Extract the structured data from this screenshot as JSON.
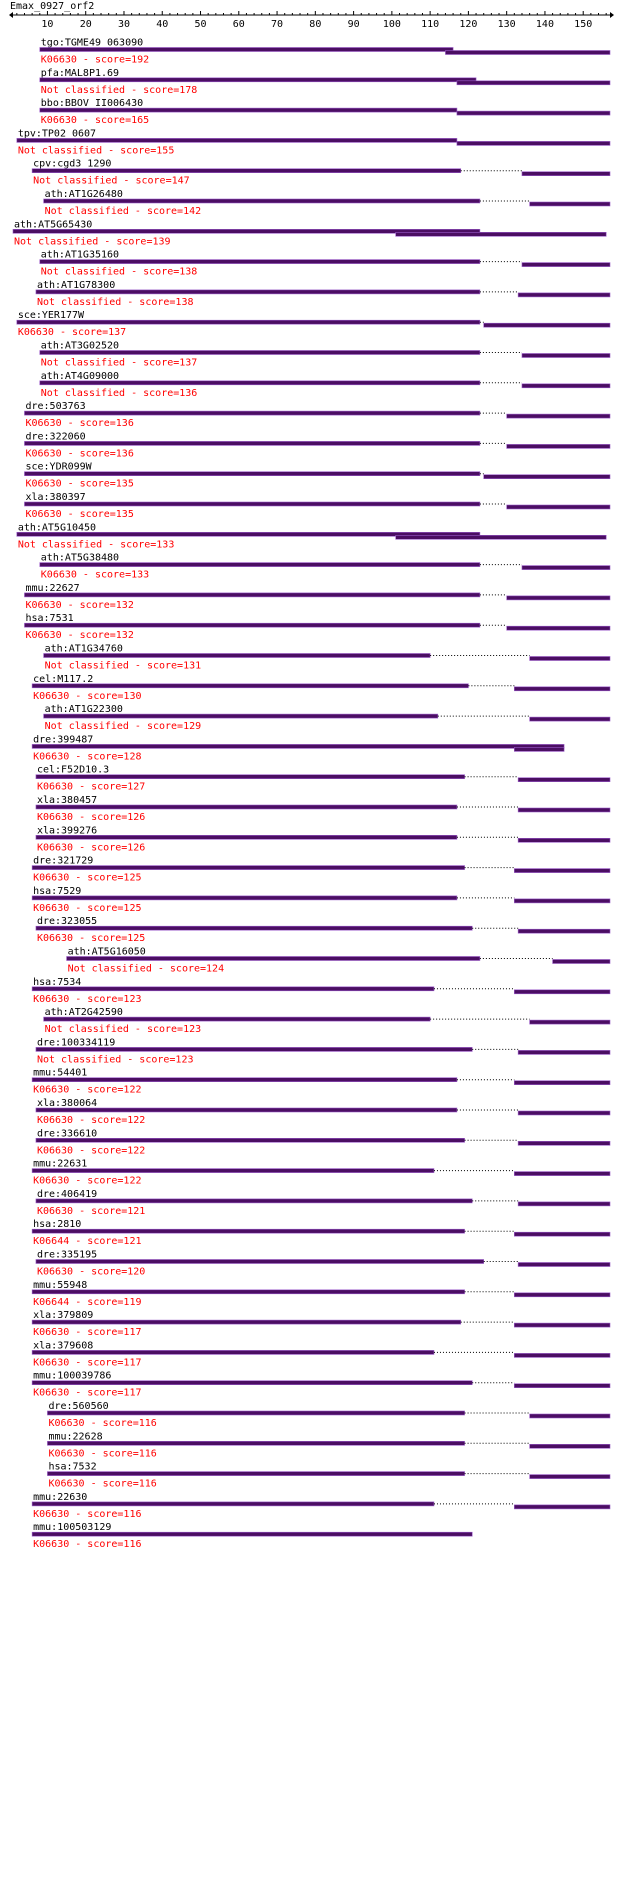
{
  "title": "Emax_0927_orf2",
  "ruler": {
    "range": [
      1,
      157
    ],
    "ticks": [
      10,
      20,
      30,
      40,
      50,
      60,
      70,
      80,
      90,
      100,
      110,
      120,
      130,
      140,
      150
    ]
  },
  "colors": {
    "bar": "#4b0e63",
    "bar_edge": "#9a5ac8",
    "score_text": "#ff0000",
    "text": "#000000"
  },
  "hits": [
    {
      "name": "tgo:TGME49_063090",
      "label": "K06630 - score=192",
      "segments": [
        [
          8,
          116
        ],
        [
          114,
          157
        ]
      ],
      "dotted": []
    },
    {
      "name": "pfa:MAL8P1.69",
      "label": "Not classified - score=178",
      "segments": [
        [
          8,
          122
        ],
        [
          117,
          157
        ]
      ],
      "dotted": []
    },
    {
      "name": "bbo:BBOV_II006430",
      "label": "K06630 - score=165",
      "segments": [
        [
          8,
          117
        ],
        [
          117,
          157
        ]
      ],
      "dotted": []
    },
    {
      "name": "tpv:TP02_0607",
      "label": "Not classified - score=155",
      "segments": [
        [
          2,
          117
        ],
        [
          117,
          157
        ]
      ],
      "dotted": []
    },
    {
      "name": "cpv:cgd3_1290",
      "label": "Not classified - score=147",
      "segments": [
        [
          6,
          118
        ],
        [
          134,
          157
        ]
      ],
      "dotted": [
        [
          118,
          134
        ]
      ]
    },
    {
      "name": "ath:AT1G26480",
      "label": "Not classified - score=142",
      "segments": [
        [
          9,
          123
        ],
        [
          136,
          157
        ]
      ],
      "dotted": [
        [
          123,
          136
        ]
      ]
    },
    {
      "name": "ath:AT5G65430",
      "label": "Not classified - score=139",
      "segments": [
        [
          1,
          123
        ],
        [
          101,
          156
        ]
      ],
      "dotted": []
    },
    {
      "name": "ath:AT1G35160",
      "label": "Not classified - score=138",
      "segments": [
        [
          8,
          123
        ],
        [
          134,
          157
        ]
      ],
      "dotted": [
        [
          123,
          134
        ]
      ]
    },
    {
      "name": "ath:AT1G78300",
      "label": "Not classified - score=138",
      "segments": [
        [
          7,
          123
        ],
        [
          133,
          157
        ]
      ],
      "dotted": [
        [
          123,
          133
        ]
      ]
    },
    {
      "name": "sce:YER177W",
      "label": "K06630 - score=137",
      "segments": [
        [
          2,
          123
        ],
        [
          124,
          157
        ]
      ],
      "dotted": [
        [
          123,
          124
        ]
      ]
    },
    {
      "name": "ath:AT3G02520",
      "label": "Not classified - score=137",
      "segments": [
        [
          8,
          123
        ],
        [
          134,
          157
        ]
      ],
      "dotted": [
        [
          123,
          134
        ]
      ]
    },
    {
      "name": "ath:AT4G09000",
      "label": "Not classified - score=136",
      "segments": [
        [
          8,
          123
        ],
        [
          134,
          157
        ]
      ],
      "dotted": [
        [
          123,
          134
        ]
      ]
    },
    {
      "name": "dre:503763",
      "label": "K06630 - score=136",
      "segments": [
        [
          4,
          123
        ],
        [
          130,
          157
        ]
      ],
      "dotted": [
        [
          123,
          130
        ]
      ]
    },
    {
      "name": "dre:322060",
      "label": "K06630 - score=136",
      "segments": [
        [
          4,
          123
        ],
        [
          130,
          157
        ]
      ],
      "dotted": [
        [
          123,
          130
        ]
      ]
    },
    {
      "name": "sce:YDR099W",
      "label": "K06630 - score=135",
      "segments": [
        [
          4,
          123
        ],
        [
          124,
          157
        ]
      ],
      "dotted": [
        [
          123,
          124
        ]
      ]
    },
    {
      "name": "xla:380397",
      "label": "K06630 - score=135",
      "segments": [
        [
          4,
          123
        ],
        [
          130,
          157
        ]
      ],
      "dotted": [
        [
          123,
          130
        ]
      ]
    },
    {
      "name": "ath:AT5G10450",
      "label": "Not classified - score=133",
      "segments": [
        [
          2,
          123
        ],
        [
          101,
          156
        ]
      ],
      "dotted": []
    },
    {
      "name": "ath:AT5G38480",
      "label": "K06630 - score=133",
      "segments": [
        [
          8,
          123
        ],
        [
          134,
          157
        ]
      ],
      "dotted": [
        [
          123,
          134
        ]
      ]
    },
    {
      "name": "mmu:22627",
      "label": "K06630 - score=132",
      "segments": [
        [
          4,
          123
        ],
        [
          130,
          157
        ]
      ],
      "dotted": [
        [
          123,
          130
        ]
      ]
    },
    {
      "name": "hsa:7531",
      "label": "K06630 - score=132",
      "segments": [
        [
          4,
          123
        ],
        [
          130,
          157
        ]
      ],
      "dotted": [
        [
          123,
          130
        ]
      ]
    },
    {
      "name": "ath:AT1G34760",
      "label": "Not classified - score=131",
      "segments": [
        [
          9,
          110
        ],
        [
          136,
          157
        ]
      ],
      "dotted": [
        [
          110,
          136
        ]
      ]
    },
    {
      "name": "cel:M117.2",
      "label": "K06630 - score=130",
      "segments": [
        [
          6,
          120
        ],
        [
          132,
          157
        ]
      ],
      "dotted": [
        [
          120,
          132
        ]
      ]
    },
    {
      "name": "ath:AT1G22300",
      "label": "Not classified - score=129",
      "segments": [
        [
          9,
          112
        ],
        [
          136,
          157
        ]
      ],
      "dotted": [
        [
          112,
          136
        ]
      ]
    },
    {
      "name": "dre:399487",
      "label": "K06630 - score=128",
      "segments": [
        [
          6,
          145
        ],
        [
          132,
          145
        ]
      ],
      "dotted": []
    },
    {
      "name": "cel:F52D10.3",
      "label": "K06630 - score=127",
      "segments": [
        [
          7,
          119
        ],
        [
          133,
          157
        ]
      ],
      "dotted": [
        [
          119,
          133
        ]
      ]
    },
    {
      "name": "xla:380457",
      "label": "K06630 - score=126",
      "segments": [
        [
          7,
          117
        ],
        [
          133,
          157
        ]
      ],
      "dotted": [
        [
          117,
          133
        ]
      ]
    },
    {
      "name": "xla:399276",
      "label": "K06630 - score=126",
      "segments": [
        [
          7,
          117
        ],
        [
          133,
          157
        ]
      ],
      "dotted": [
        [
          117,
          133
        ]
      ]
    },
    {
      "name": "dre:321729",
      "label": "K06630 - score=125",
      "segments": [
        [
          6,
          119
        ],
        [
          132,
          157
        ]
      ],
      "dotted": [
        [
          119,
          132
        ]
      ]
    },
    {
      "name": "hsa:7529",
      "label": "K06630 - score=125",
      "segments": [
        [
          6,
          117
        ],
        [
          132,
          157
        ]
      ],
      "dotted": [
        [
          117,
          132
        ]
      ]
    },
    {
      "name": "dre:323055",
      "label": "K06630 - score=125",
      "segments": [
        [
          7,
          121
        ],
        [
          133,
          157
        ]
      ],
      "dotted": [
        [
          121,
          133
        ]
      ]
    },
    {
      "name": "ath:AT5G16050",
      "label": "Not classified - score=124",
      "segments": [
        [
          15,
          123
        ],
        [
          142,
          157
        ]
      ],
      "dotted": [
        [
          123,
          142
        ]
      ]
    },
    {
      "name": "hsa:7534",
      "label": "K06630 - score=123",
      "segments": [
        [
          6,
          111
        ],
        [
          132,
          157
        ]
      ],
      "dotted": [
        [
          111,
          132
        ]
      ]
    },
    {
      "name": "ath:AT2G42590",
      "label": "Not classified - score=123",
      "segments": [
        [
          9,
          110
        ],
        [
          136,
          157
        ]
      ],
      "dotted": [
        [
          110,
          136
        ]
      ]
    },
    {
      "name": "dre:100334119",
      "label": "Not classified - score=123",
      "segments": [
        [
          7,
          121
        ],
        [
          133,
          157
        ]
      ],
      "dotted": [
        [
          121,
          133
        ]
      ]
    },
    {
      "name": "mmu:54401",
      "label": "K06630 - score=122",
      "segments": [
        [
          6,
          117
        ],
        [
          132,
          157
        ]
      ],
      "dotted": [
        [
          117,
          132
        ]
      ]
    },
    {
      "name": "xla:380064",
      "label": "K06630 - score=122",
      "segments": [
        [
          7,
          117
        ],
        [
          133,
          157
        ]
      ],
      "dotted": [
        [
          117,
          133
        ]
      ]
    },
    {
      "name": "dre:336610",
      "label": "K06630 - score=122",
      "segments": [
        [
          7,
          119
        ],
        [
          133,
          157
        ]
      ],
      "dotted": [
        [
          119,
          133
        ]
      ]
    },
    {
      "name": "mmu:22631",
      "label": "K06630 - score=122",
      "segments": [
        [
          6,
          111
        ],
        [
          132,
          157
        ]
      ],
      "dotted": [
        [
          111,
          132
        ]
      ]
    },
    {
      "name": "dre:406419",
      "label": "K06630 - score=121",
      "segments": [
        [
          7,
          121
        ],
        [
          133,
          157
        ]
      ],
      "dotted": [
        [
          121,
          133
        ]
      ]
    },
    {
      "name": "hsa:2810",
      "label": "K06644 - score=121",
      "segments": [
        [
          6,
          119
        ],
        [
          132,
          157
        ]
      ],
      "dotted": [
        [
          119,
          132
        ]
      ]
    },
    {
      "name": "dre:335195",
      "label": "K06630 - score=120",
      "segments": [
        [
          7,
          124
        ],
        [
          133,
          157
        ]
      ],
      "dotted": [
        [
          124,
          133
        ]
      ]
    },
    {
      "name": "mmu:55948",
      "label": "K06644 - score=119",
      "segments": [
        [
          6,
          119
        ],
        [
          132,
          157
        ]
      ],
      "dotted": [
        [
          119,
          132
        ]
      ]
    },
    {
      "name": "xla:379809",
      "label": "K06630 - score=117",
      "segments": [
        [
          6,
          118
        ],
        [
          132,
          157
        ]
      ],
      "dotted": [
        [
          118,
          132
        ]
      ]
    },
    {
      "name": "xla:379608",
      "label": "K06630 - score=117",
      "segments": [
        [
          6,
          111
        ],
        [
          132,
          157
        ]
      ],
      "dotted": [
        [
          111,
          132
        ]
      ]
    },
    {
      "name": "mmu:100039786",
      "label": "K06630 - score=117",
      "segments": [
        [
          6,
          121
        ],
        [
          132,
          157
        ]
      ],
      "dotted": [
        [
          121,
          132
        ]
      ]
    },
    {
      "name": "dre:560560",
      "label": "K06630 - score=116",
      "segments": [
        [
          10,
          119
        ],
        [
          136,
          157
        ]
      ],
      "dotted": [
        [
          119,
          136
        ]
      ]
    },
    {
      "name": "mmu:22628",
      "label": "K06630 - score=116",
      "segments": [
        [
          10,
          119
        ],
        [
          136,
          157
        ]
      ],
      "dotted": [
        [
          119,
          136
        ]
      ]
    },
    {
      "name": "hsa:7532",
      "label": "K06630 - score=116",
      "segments": [
        [
          10,
          119
        ],
        [
          136,
          157
        ]
      ],
      "dotted": [
        [
          119,
          136
        ]
      ]
    },
    {
      "name": "mmu:22630",
      "label": "K06630 - score=116",
      "segments": [
        [
          6,
          111
        ],
        [
          132,
          157
        ]
      ],
      "dotted": [
        [
          111,
          132
        ]
      ]
    },
    {
      "name": "mmu:100503129",
      "label": "K06630 - score=116",
      "segments": [
        [
          6,
          121
        ]
      ],
      "dotted": []
    }
  ]
}
